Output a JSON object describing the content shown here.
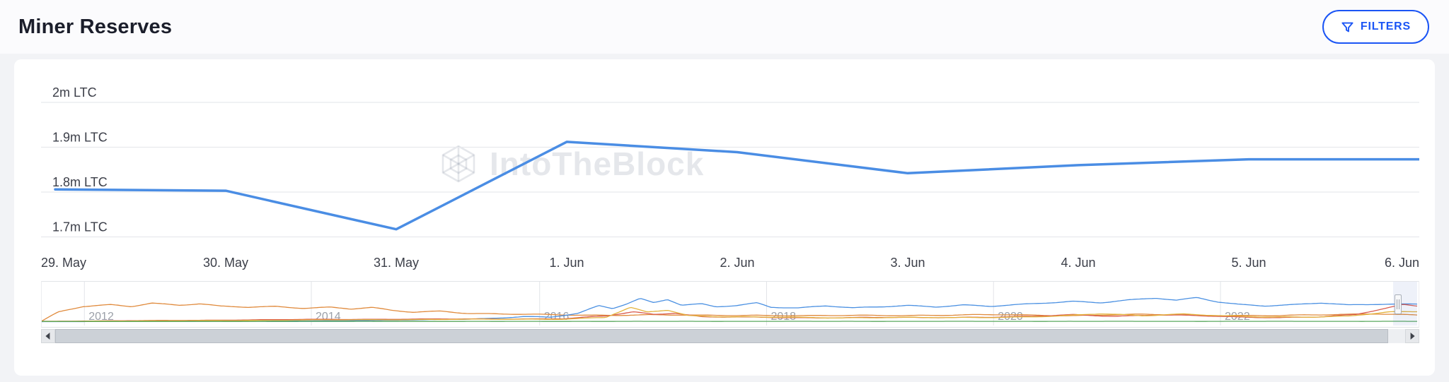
{
  "page": {
    "background": "#f2f3f6"
  },
  "header": {
    "title": "Miner Reserves",
    "filters_button": {
      "label": "FILTERS",
      "color": "#1b55f5",
      "icon": "filter-funnel-icon"
    }
  },
  "icons": {
    "filter_icon": "funnel",
    "scroll_left_icon": "left-triangle",
    "scroll_right_icon": "right-triangle",
    "watermark_logo": "intotheblock-hexagon"
  },
  "chart_data": {
    "type": "line",
    "title": "Miner Reserves",
    "unit": "LTC",
    "ylim_million_ltc": [
      1.7,
      2.0
    ],
    "grid": true,
    "legend": "none",
    "watermark": "IntoTheBlock",
    "series": [
      {
        "name": "Miner Reserves (LTC)",
        "color": "#4a8de4",
        "values_million_ltc": [
          1.806,
          1.803,
          1.717,
          1.912,
          1.889,
          1.842,
          1.86,
          1.873,
          1.873
        ]
      }
    ],
    "xlabels": [
      "29. May",
      "30. May",
      "31. May",
      "1. Jun",
      "2. Jun",
      "3. Jun",
      "4. Jun",
      "5. Jun",
      "6. Jun"
    ],
    "yticks": [
      {
        "value": 2.0,
        "label": "2m LTC"
      },
      {
        "value": 1.9,
        "label": "1.9m LTC"
      },
      {
        "value": 1.8,
        "label": "1.8m LTC"
      },
      {
        "value": 1.7,
        "label": "1.7m LTC"
      }
    ],
    "navigator": {
      "year_labels": [
        "2012",
        "2014",
        "2016",
        "2018",
        "2020",
        "2022"
      ],
      "year_fractions": [
        0.031,
        0.196,
        0.362,
        0.527,
        0.692,
        0.857
      ],
      "series": [
        {
          "color": "#e08a3c",
          "points": [
            [
              0,
              0.03
            ],
            [
              0.012,
              0.3
            ],
            [
              0.03,
              0.47
            ],
            [
              0.05,
              0.53
            ],
            [
              0.065,
              0.48
            ],
            [
              0.08,
              0.59
            ],
            [
              0.1,
              0.52
            ],
            [
              0.115,
              0.56
            ],
            [
              0.13,
              0.48
            ],
            [
              0.15,
              0.45
            ],
            [
              0.17,
              0.48
            ],
            [
              0.19,
              0.43
            ],
            [
              0.21,
              0.46
            ],
            [
              0.225,
              0.4
            ],
            [
              0.24,
              0.44
            ],
            [
              0.255,
              0.35
            ],
            [
              0.27,
              0.3
            ],
            [
              0.29,
              0.34
            ],
            [
              0.31,
              0.27
            ],
            [
              0.34,
              0.24
            ],
            [
              0.37,
              0.22
            ],
            [
              0.4,
              0.21
            ],
            [
              0.44,
              0.22
            ],
            [
              0.48,
              0.2
            ],
            [
              0.52,
              0.21
            ],
            [
              0.56,
              0.19
            ],
            [
              0.6,
              0.2
            ],
            [
              0.65,
              0.21
            ],
            [
              0.7,
              0.22
            ],
            [
              0.75,
              0.2
            ],
            [
              0.8,
              0.23
            ],
            [
              0.85,
              0.21
            ],
            [
              0.9,
              0.19
            ],
            [
              0.94,
              0.23
            ],
            [
              0.97,
              0.26
            ],
            [
              1,
              0.21
            ]
          ]
        },
        {
          "color": "#4a90e2",
          "points": [
            [
              0,
              0.01
            ],
            [
              0.15,
              0.02
            ],
            [
              0.22,
              0.04
            ],
            [
              0.27,
              0.06
            ],
            [
              0.31,
              0.09
            ],
            [
              0.33,
              0.12
            ],
            [
              0.35,
              0.17
            ],
            [
              0.37,
              0.14
            ],
            [
              0.39,
              0.26
            ],
            [
              0.405,
              0.5
            ],
            [
              0.415,
              0.42
            ],
            [
              0.425,
              0.56
            ],
            [
              0.435,
              0.73
            ],
            [
              0.445,
              0.6
            ],
            [
              0.455,
              0.7
            ],
            [
              0.465,
              0.52
            ],
            [
              0.48,
              0.55
            ],
            [
              0.49,
              0.46
            ],
            [
              0.505,
              0.5
            ],
            [
              0.52,
              0.59
            ],
            [
              0.53,
              0.46
            ],
            [
              0.55,
              0.44
            ],
            [
              0.57,
              0.5
            ],
            [
              0.59,
              0.43
            ],
            [
              0.61,
              0.46
            ],
            [
              0.63,
              0.51
            ],
            [
              0.65,
              0.47
            ],
            [
              0.67,
              0.53
            ],
            [
              0.69,
              0.48
            ],
            [
              0.71,
              0.53
            ],
            [
              0.73,
              0.58
            ],
            [
              0.75,
              0.64
            ],
            [
              0.77,
              0.6
            ],
            [
              0.79,
              0.68
            ],
            [
              0.81,
              0.73
            ],
            [
              0.825,
              0.66
            ],
            [
              0.84,
              0.75
            ],
            [
              0.855,
              0.62
            ],
            [
              0.87,
              0.55
            ],
            [
              0.89,
              0.5
            ],
            [
              0.91,
              0.53
            ],
            [
              0.93,
              0.58
            ],
            [
              0.95,
              0.52
            ],
            [
              0.97,
              0.55
            ],
            [
              1,
              0.56
            ]
          ]
        },
        {
          "color": "#d95b4e",
          "points": [
            [
              0,
              0.02
            ],
            [
              0.1,
              0.05
            ],
            [
              0.2,
              0.08
            ],
            [
              0.3,
              0.09
            ],
            [
              0.38,
              0.1
            ],
            [
              0.41,
              0.18
            ],
            [
              0.43,
              0.31
            ],
            [
              0.445,
              0.24
            ],
            [
              0.46,
              0.28
            ],
            [
              0.48,
              0.16
            ],
            [
              0.52,
              0.14
            ],
            [
              0.56,
              0.13
            ],
            [
              0.6,
              0.14
            ],
            [
              0.64,
              0.13
            ],
            [
              0.68,
              0.15
            ],
            [
              0.72,
              0.17
            ],
            [
              0.75,
              0.22
            ],
            [
              0.78,
              0.18
            ],
            [
              0.81,
              0.22
            ],
            [
              0.84,
              0.19
            ],
            [
              0.87,
              0.15
            ],
            [
              0.9,
              0.14
            ],
            [
              0.93,
              0.16
            ],
            [
              0.955,
              0.22
            ],
            [
              0.975,
              0.4
            ],
            [
              0.99,
              0.54
            ],
            [
              1,
              0.5
            ]
          ]
        },
        {
          "color": "#e3b33d",
          "points": [
            [
              0,
              0.02
            ],
            [
              0.1,
              0.04
            ],
            [
              0.2,
              0.06
            ],
            [
              0.3,
              0.08
            ],
            [
              0.38,
              0.09
            ],
            [
              0.41,
              0.14
            ],
            [
              0.428,
              0.44
            ],
            [
              0.44,
              0.3
            ],
            [
              0.455,
              0.37
            ],
            [
              0.47,
              0.2
            ],
            [
              0.5,
              0.16
            ],
            [
              0.54,
              0.14
            ],
            [
              0.58,
              0.13
            ],
            [
              0.62,
              0.14
            ],
            [
              0.66,
              0.13
            ],
            [
              0.7,
              0.15
            ],
            [
              0.74,
              0.18
            ],
            [
              0.77,
              0.25
            ],
            [
              0.8,
              0.2
            ],
            [
              0.83,
              0.25
            ],
            [
              0.86,
              0.18
            ],
            [
              0.89,
              0.15
            ],
            [
              0.92,
              0.16
            ],
            [
              0.95,
              0.18
            ],
            [
              0.98,
              0.3
            ],
            [
              1,
              0.32
            ]
          ]
        },
        {
          "color": "#5aa85e",
          "points": [
            [
              0,
              0.015
            ],
            [
              0.5,
              0.02
            ],
            [
              1,
              0.02
            ]
          ]
        }
      ]
    }
  }
}
